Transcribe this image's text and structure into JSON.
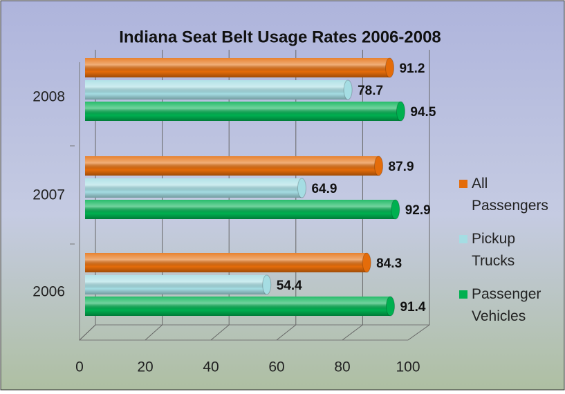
{
  "chart_data": {
    "type": "bar",
    "orientation": "horizontal",
    "title": "Indiana Seat Belt Usage Rates 2006-2008",
    "categories": [
      "2006",
      "2007",
      "2008"
    ],
    "series": [
      {
        "name": "All Passengers",
        "color": "#e46c0a",
        "values": [
          84.3,
          87.9,
          91.2
        ]
      },
      {
        "name": "Pickup Trucks",
        "color": "#a5dde3",
        "values": [
          54.4,
          64.9,
          78.7
        ]
      },
      {
        "name": "Passenger Vehicles",
        "color": "#00b050",
        "values": [
          91.4,
          92.9,
          94.5
        ]
      }
    ],
    "xlim": [
      0,
      100
    ],
    "xticks": [
      0,
      20,
      40,
      60,
      80,
      100
    ],
    "grid": true,
    "legend": "right"
  }
}
